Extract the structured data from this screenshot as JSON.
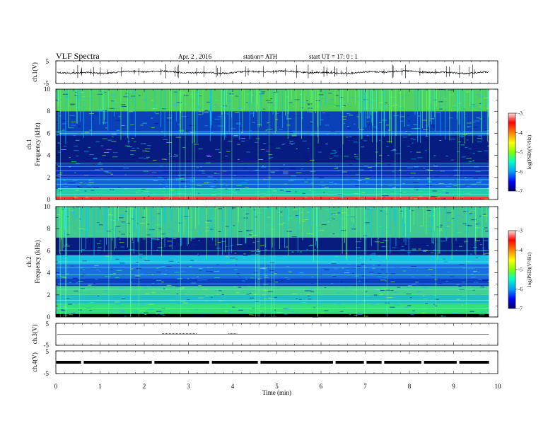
{
  "header": {
    "title": "VLF  Spectra",
    "date": "Apr. 2  , 2016",
    "station": "station= ATH",
    "start": "start  UT  =    17: 0  : 1"
  },
  "chart_data": [
    {
      "type": "line",
      "panel": "ch1-waveform",
      "ylabel": "ch.1(V)",
      "ylim": [
        -5,
        5
      ],
      "yticks": [
        "5",
        "-5"
      ],
      "x_range_min": [
        0,
        9.8
      ],
      "baseline_v": 0.0,
      "trace_color": "#000000"
    },
    {
      "type": "heatmap",
      "panel": "ch1-spectrogram",
      "ylabel": "ch.1\nFrequency (kHz)",
      "ylabel_line1": "ch.1",
      "ylabel_line2": "Frequency (kHz)",
      "ylim": [
        0,
        10
      ],
      "yticks": [
        "0",
        "2",
        "4",
        "6",
        "8",
        "10"
      ],
      "x_range_min": [
        0,
        9.8
      ],
      "colorbar": {
        "label": "log(PSD)(V²/Hz)",
        "range": [
          -7,
          -3
        ],
        "ticks": [
          "-3",
          "-4",
          "-5",
          "-6",
          "-7"
        ],
        "colors": [
          "#000060",
          "#0000ff",
          "#00a0ff",
          "#00ffc0",
          "#80ff00",
          "#ffff00",
          "#ff8000",
          "#ff0000",
          "#ffc0c0",
          "#ffffff"
        ]
      },
      "bands_khz": [
        {
          "f0": 0.0,
          "f1": 0.25,
          "color": "#ff3030"
        },
        {
          "f0": 0.25,
          "f1": 1.0,
          "color": "#20d0a0"
        },
        {
          "f0": 1.0,
          "f1": 2.0,
          "color": "#1060e0"
        },
        {
          "f0": 2.0,
          "f1": 3.2,
          "color": "#0a30b0"
        },
        {
          "f0": 3.2,
          "f1": 5.8,
          "color": "#061c80"
        },
        {
          "f0": 5.8,
          "f1": 6.2,
          "color": "#1a70e0"
        },
        {
          "f0": 6.2,
          "f1": 8.0,
          "color": "#0a40b8"
        },
        {
          "f0": 8.0,
          "f1": 10.0,
          "color": "#50d060"
        }
      ],
      "lines_khz": [
        0.5,
        1.0,
        1.4,
        1.8,
        2.2,
        2.6,
        3.0,
        3.3,
        6.0
      ]
    },
    {
      "type": "heatmap",
      "panel": "ch2-spectrogram",
      "ylabel_line1": "ch.2",
      "ylabel_line2": "Frequency (kHz)",
      "ylim": [
        0,
        10
      ],
      "yticks": [
        "0",
        "2",
        "4",
        "6",
        "8",
        "10"
      ],
      "x_range_min": [
        0,
        9.8
      ],
      "colorbar": {
        "label": "log(PSD)(V²/Hz)",
        "range": [
          -7,
          -3
        ],
        "ticks": [
          "-3",
          "-4",
          "-5",
          "-6",
          "-7"
        ]
      },
      "bands_khz": [
        {
          "f0": 0.0,
          "f1": 0.3,
          "color": "#000000"
        },
        {
          "f0": 0.3,
          "f1": 1.2,
          "color": "#30e080"
        },
        {
          "f0": 1.2,
          "f1": 2.0,
          "color": "#20c0c0"
        },
        {
          "f0": 2.0,
          "f1": 2.8,
          "color": "#40d090"
        },
        {
          "f0": 2.8,
          "f1": 3.5,
          "color": "#0a40c0"
        },
        {
          "f0": 3.5,
          "f1": 4.8,
          "color": "#1870e0"
        },
        {
          "f0": 4.8,
          "f1": 5.6,
          "color": "#1ac0e0"
        },
        {
          "f0": 5.6,
          "f1": 7.2,
          "color": "#081c80"
        },
        {
          "f0": 7.2,
          "f1": 10.0,
          "color": "#40c890"
        }
      ],
      "lines_khz": [
        0.3,
        0.8,
        1.5,
        2.5,
        3.0,
        3.8,
        4.5,
        5.0,
        6.0
      ]
    },
    {
      "type": "line",
      "panel": "ch3-waveform",
      "ylabel": "ch.3(V)",
      "ylim": [
        -5,
        5
      ],
      "yticks": [
        "5",
        "-5"
      ],
      "x_range_min": [
        0,
        9.8
      ],
      "baseline_v": 0.0
    },
    {
      "type": "line",
      "panel": "ch4-waveform",
      "ylabel": "ch.4(V)",
      "ylim": [
        -5,
        5
      ],
      "yticks": [
        "5",
        "-5"
      ],
      "x_range_min": [
        0,
        9.8
      ],
      "baseline_v": 0.0,
      "gaps_min": [
        0.6,
        2.2,
        3.5,
        4.6,
        6.3,
        7.0,
        7.4,
        8.3,
        9.1
      ]
    }
  ],
  "x_axis": {
    "xlabel": "Time  (min)",
    "xlim": [
      0,
      10
    ],
    "ticks": [
      "0",
      "1",
      "2",
      "3",
      "4",
      "5",
      "6",
      "7",
      "8",
      "9",
      "10"
    ]
  }
}
